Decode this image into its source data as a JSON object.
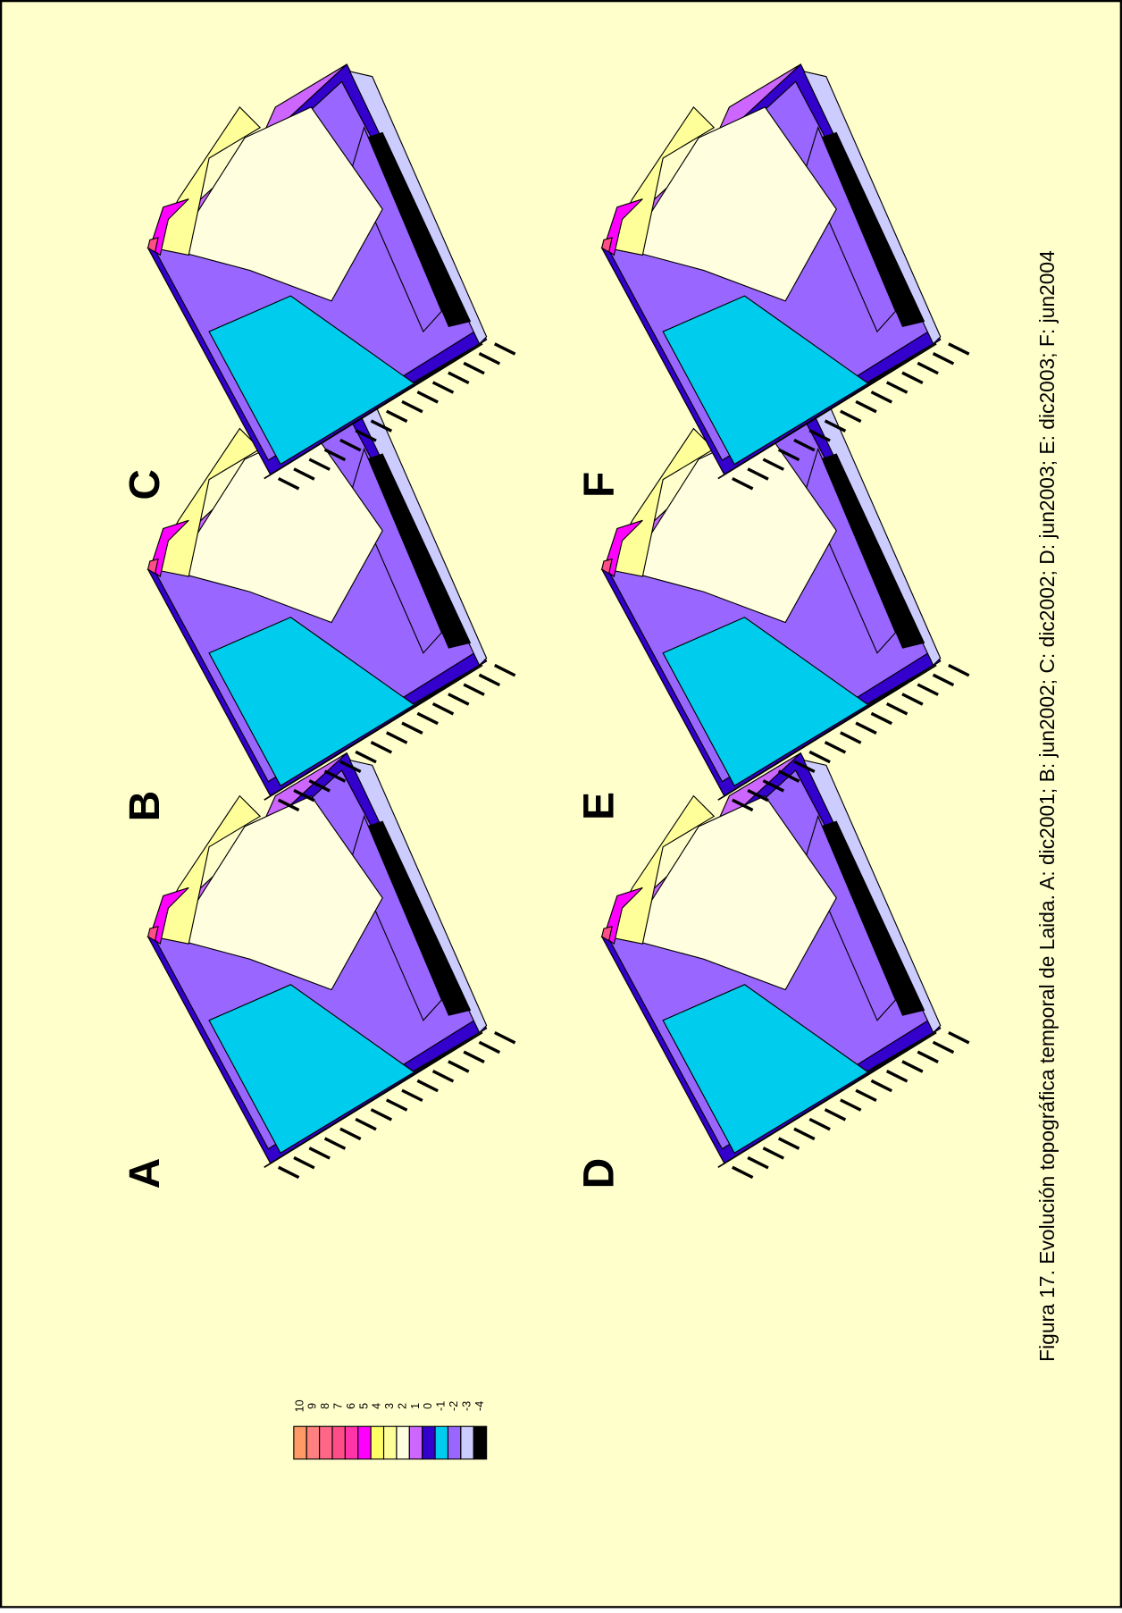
{
  "figure": {
    "caption": "Figura 17. Evolución topográfica temporal de Laida. A: dic2001; B: jun2002; C: dic2002; D: jun2003; E: dic2003; F: jun2004",
    "panels": [
      {
        "label": "A"
      },
      {
        "label": "B"
      },
      {
        "label": "C"
      },
      {
        "label": "D"
      },
      {
        "label": "E"
      },
      {
        "label": "F"
      }
    ],
    "legend": [
      {
        "label": "10",
        "color": "#ff9966"
      },
      {
        "label": "9",
        "color": "#ff8080"
      },
      {
        "label": "8",
        "color": "#ff6688"
      },
      {
        "label": "7",
        "color": "#ff4d88"
      },
      {
        "label": "6",
        "color": "#ff33aa"
      },
      {
        "label": "5",
        "color": "#ff00ff"
      },
      {
        "label": "4",
        "color": "#ffff66"
      },
      {
        "label": "3",
        "color": "#ffff99"
      },
      {
        "label": "2",
        "color": "#ffffe0"
      },
      {
        "label": "1",
        "color": "#cc66ff"
      },
      {
        "label": "0",
        "color": "#3300cc"
      },
      {
        "label": "-1",
        "color": "#00ccee"
      },
      {
        "label": "-2",
        "color": "#9966ff"
      },
      {
        "label": "-3",
        "color": "#ccccff"
      },
      {
        "label": "-4",
        "color": "#000000"
      }
    ]
  }
}
